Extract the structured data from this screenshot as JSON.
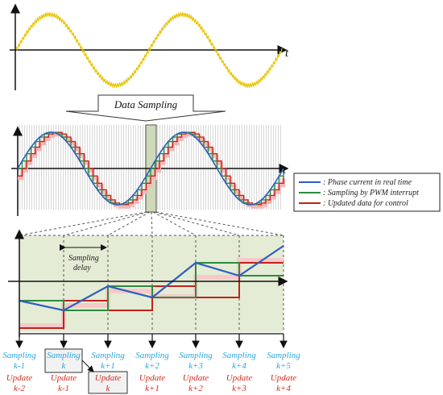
{
  "top_panel": {
    "axis_label": "t",
    "wave_color": "#e8c400"
  },
  "arrow_label": "Data Sampling",
  "middle_panel": {
    "axis_label": "t",
    "colors": {
      "real_time": "#2f5fbf",
      "sampling": "#2e8b3e",
      "updated": "#c2221a",
      "highlight_fill": "#cdd9b8"
    }
  },
  "legend": {
    "items": [
      {
        "label": ": Phase current in real time",
        "color": "#2f5fbf"
      },
      {
        "label": ": Sampling by PWM interrupt",
        "color": "#2e8b3e"
      },
      {
        "label": ": Updated data for control",
        "color": "#c2221a"
      }
    ]
  },
  "bottom_panel": {
    "sampling_delay": [
      "Sampling",
      "delay"
    ],
    "background_fill": "#e4ecd5"
  },
  "timeline": {
    "sampling_word": "Sampling",
    "update_word": "Update",
    "sampling_suffixes": [
      "k-1",
      "k",
      "k+1",
      "k+2",
      "k+3",
      "k+4",
      "k+5"
    ],
    "update_suffixes": [
      "k-2",
      "k-1",
      "k",
      "k+1",
      "k+2",
      "k+3",
      "k+4"
    ],
    "highlight_sampling_index": 1,
    "highlight_update_index": 2
  }
}
